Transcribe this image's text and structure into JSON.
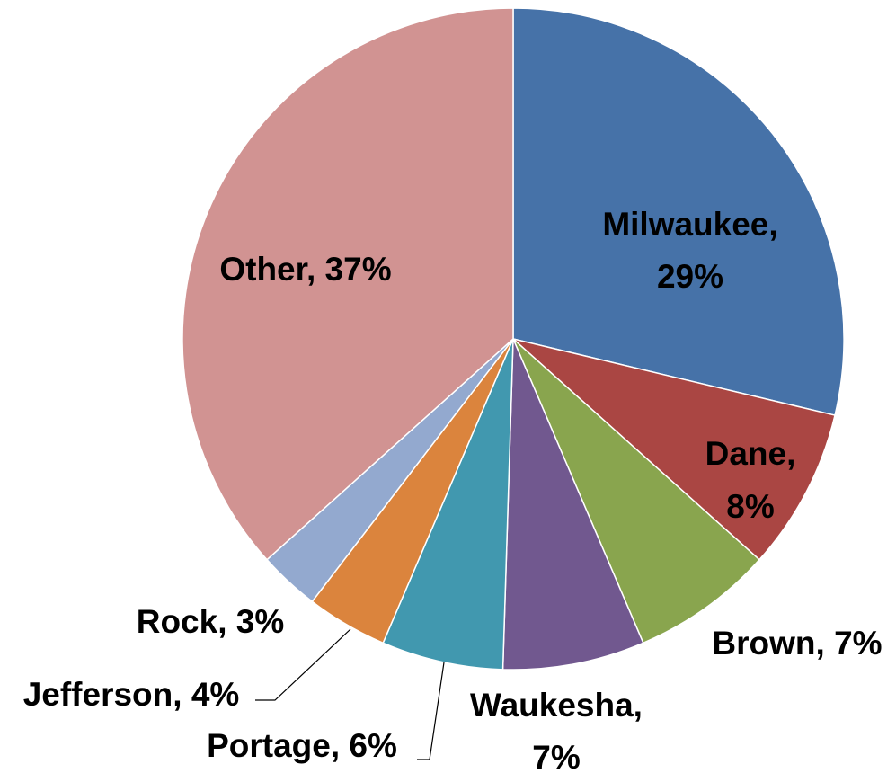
{
  "chart_data": {
    "type": "pie",
    "title": "",
    "slices": [
      {
        "label": "Milwaukee",
        "value": 29,
        "color": "#4672A8",
        "label_lines": [
          "Milwaukee,",
          "29%"
        ]
      },
      {
        "label": "Dane",
        "value": 8,
        "color": "#AA4643",
        "label_lines": [
          "Dane,",
          "8%"
        ]
      },
      {
        "label": "Brown",
        "value": 7,
        "color": "#89A54E",
        "label_lines": [
          "Brown, 7%"
        ]
      },
      {
        "label": "Waukesha",
        "value": 7,
        "color": "#71588F",
        "label_lines": [
          "Waukesha,",
          "7%"
        ]
      },
      {
        "label": "Portage",
        "value": 6,
        "color": "#4198AF",
        "label_lines": [
          "Portage, 6%"
        ]
      },
      {
        "label": "Jefferson",
        "value": 4,
        "color": "#DB843D",
        "label_lines": [
          "Jefferson, 4%"
        ]
      },
      {
        "label": "Rock",
        "value": 3,
        "color": "#93A9CF",
        "label_lines": [
          "Rock, 3%"
        ]
      },
      {
        "label": "Other",
        "value": 37,
        "color": "#D19392",
        "label_lines": [
          "Other, 37%"
        ]
      }
    ],
    "legend": "none",
    "start_angle_deg": 0,
    "direction": "clockwise"
  }
}
